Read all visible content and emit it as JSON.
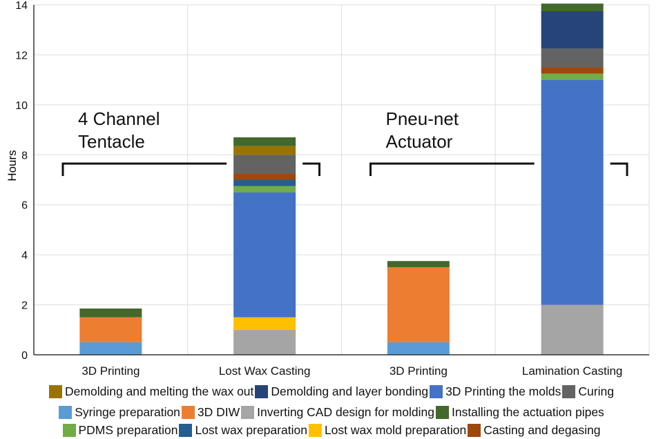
{
  "chart_data": {
    "type": "bar",
    "stacked": true,
    "ylabel": "Hours",
    "xlabel": "",
    "ylim": [
      0,
      14
    ],
    "yticks": [
      0,
      2,
      4,
      6,
      8,
      10,
      12,
      14
    ],
    "grid": true,
    "legend_position": "bottom",
    "categories": [
      "3D Printing",
      "Lost Wax Casting",
      "3D Printing",
      "Lamination Casting"
    ],
    "groups": [
      {
        "label": "4 Channel Tentacle",
        "categories": [
          0,
          1
        ]
      },
      {
        "label": "Pneu-net Actuator",
        "categories": [
          2,
          3
        ]
      }
    ],
    "series": [
      {
        "name": "Syringe preparation",
        "color": "#5b9bd5",
        "values": [
          0.5,
          0,
          0.5,
          0
        ]
      },
      {
        "name": "Inverting CAD design for molding",
        "color": "#a5a5a5",
        "values": [
          0,
          1.0,
          0,
          2.0
        ]
      },
      {
        "name": "Lost wax mold preparation",
        "color": "#ffc000",
        "values": [
          0,
          0.5,
          0,
          0
        ]
      },
      {
        "name": "3D DIW",
        "color": "#ed7d31",
        "values": [
          1.0,
          0,
          3.0,
          0
        ]
      },
      {
        "name": "3D Printing the molds",
        "color": "#4472c4",
        "values": [
          0,
          5.0,
          0,
          9.0
        ]
      },
      {
        "name": "PDMS preparation",
        "color": "#70ad47",
        "values": [
          0,
          0.25,
          0,
          0.25
        ]
      },
      {
        "name": "Lost wax preparation",
        "color": "#255e91",
        "values": [
          0,
          0.25,
          0,
          0
        ]
      },
      {
        "name": "Casting and degasing",
        "color": "#9e480e",
        "values": [
          0,
          0.25,
          0,
          0.25
        ]
      },
      {
        "name": "Curing",
        "color": "#636363",
        "values": [
          0,
          0.75,
          0,
          0.75
        ]
      },
      {
        "name": "Demolding and melting the wax out",
        "color": "#997300",
        "values": [
          0,
          0.35,
          0,
          0
        ]
      },
      {
        "name": "Demolding and layer bonding",
        "color": "#264478",
        "values": [
          0,
          0,
          0,
          1.5
        ]
      },
      {
        "name": "Installing the actuation pipes",
        "color": "#43682b",
        "values": [
          0.35,
          0.35,
          0.25,
          0.3
        ]
      }
    ],
    "legend_rows": [
      [
        "Demolding and melting the wax out",
        "Demolding and layer bonding",
        "3D Printing the molds",
        "Curing"
      ],
      [
        "Syringe preparation",
        "3D DIW",
        "Inverting CAD design for molding",
        "Installing the actuation pipes"
      ],
      [
        "PDMS preparation",
        "Lost wax preparation",
        "Lost wax mold preparation",
        "Casting and degasing"
      ]
    ]
  }
}
